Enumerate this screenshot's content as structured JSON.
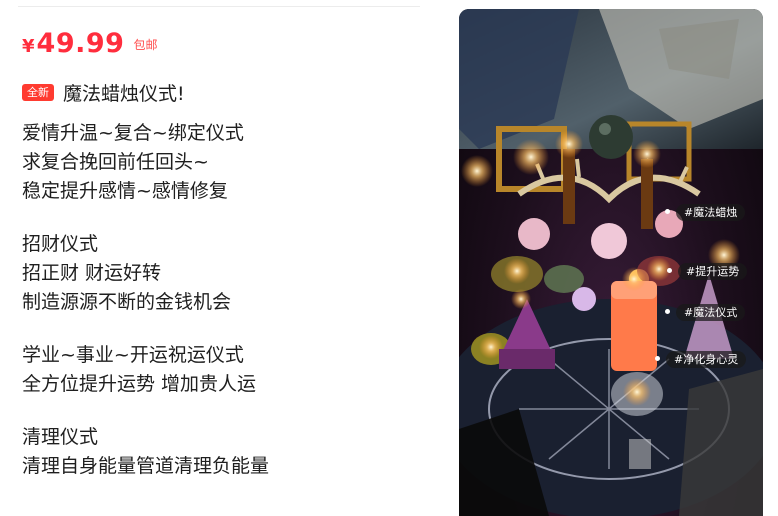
{
  "product": {
    "currency": "¥",
    "price": "49.99",
    "shipping": "包邮",
    "badge": "全新",
    "title": "魔法蜡烛仪式!"
  },
  "description": {
    "sections": [
      {
        "lines": [
          "爱情升温~复合~绑定仪式",
          "求复合挽回前任回头~",
          "稳定提升感情~感情修复"
        ]
      },
      {
        "lines": [
          "招财仪式",
          "招正财 财运好转",
          "制造源源不断的金钱机会"
        ]
      },
      {
        "lines": [
          "学业~事业~开运祝运仪式",
          "全方位提升运势 增加贵人运"
        ]
      },
      {
        "lines": [
          "清理仪式",
          "清理自身能量管道清理负能量"
        ]
      }
    ]
  },
  "image_tags": [
    "#魔法蜡烛",
    "#提升运势",
    "#魔法仪式",
    "#净化身心灵"
  ],
  "colors": {
    "price_red": "#ff2d3d",
    "badge_red": "#ff3b30"
  }
}
